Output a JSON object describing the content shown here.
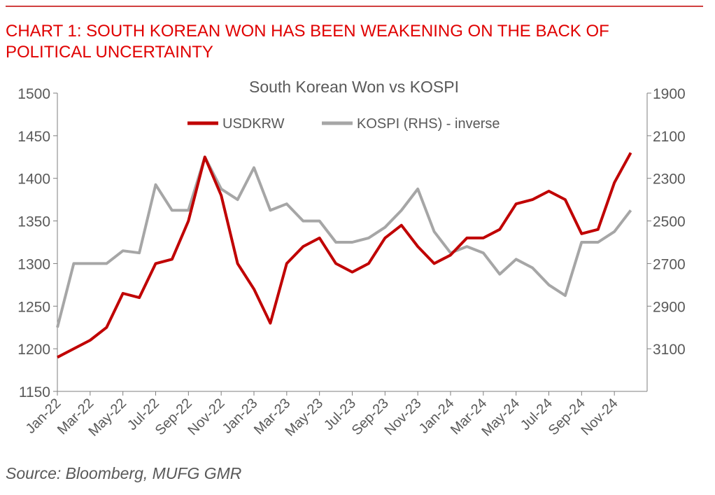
{
  "chart_data": {
    "type": "line",
    "header": "CHART 1: SOUTH KOREAN WON HAS BEEN WEAKENING ON THE BACK OF POLITICAL UNCERTAINTY",
    "title": "South Korean Won vs KOSPI",
    "source": "Source: Bloomberg, MUFG GMR",
    "categories": [
      "Jan-22",
      null,
      "Mar-22",
      null,
      "May-22",
      null,
      "Jul-22",
      null,
      "Sep-22",
      null,
      "Nov-22",
      null,
      "Jan-23",
      null,
      "Mar-23",
      null,
      "May-23",
      null,
      "Jul-23",
      null,
      "Sep-23",
      null,
      "Nov-23",
      null,
      "Jan-24",
      null,
      "Mar-24",
      null,
      "May-24",
      null,
      "Jul-24",
      null,
      "Sep-24",
      null,
      "Nov-24",
      null
    ],
    "series": [
      {
        "name": "USDKRW",
        "color": "#c00000",
        "values": [
          1190,
          1200,
          1210,
          1225,
          1265,
          1260,
          1300,
          1305,
          1350,
          1425,
          1380,
          1300,
          1270,
          1230,
          1300,
          1320,
          1330,
          1300,
          1290,
          1300,
          1330,
          1345,
          1320,
          1300,
          1310,
          1330,
          1330,
          1340,
          1370,
          1375,
          1385,
          1375,
          1335,
          1340,
          1395,
          1430
        ]
      },
      {
        "name": "KOSPI (RHS) - inverse",
        "color": "#a6a6a6",
        "axis": "y2",
        "values": [
          3000,
          2700,
          2700,
          2700,
          2640,
          2650,
          2330,
          2450,
          2450,
          2200,
          2350,
          2400,
          2250,
          2450,
          2420,
          2500,
          2500,
          2600,
          2600,
          2580,
          2530,
          2450,
          2350,
          2550,
          2650,
          2620,
          2650,
          2750,
          2680,
          2720,
          2800,
          2850,
          2600,
          2600,
          2550,
          2450
        ]
      }
    ],
    "ylim": [
      1150,
      1500
    ],
    "yticks": [
      1150,
      1200,
      1250,
      1300,
      1350,
      1400,
      1450,
      1500
    ],
    "y2lim": [
      3300,
      1900
    ],
    "y2ticks": [
      1900,
      2100,
      2300,
      2500,
      2700,
      2900,
      3100
    ],
    "legend": "top"
  }
}
